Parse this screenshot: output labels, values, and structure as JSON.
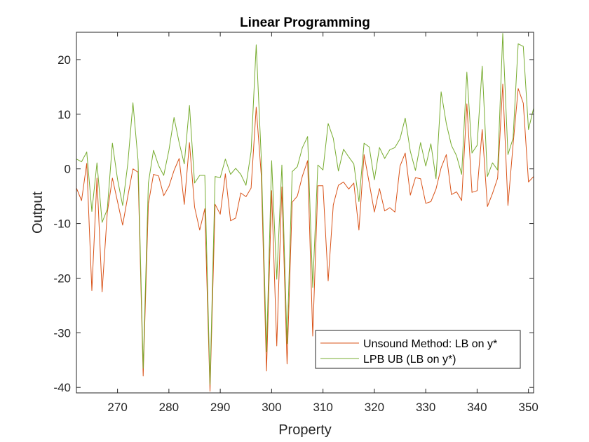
{
  "chart_data": {
    "type": "line",
    "title": "Linear Programming",
    "xlabel": "Property",
    "ylabel": "Output",
    "xlim": [
      262,
      351
    ],
    "ylim": [
      -41,
      25
    ],
    "xticks": [
      270,
      280,
      290,
      300,
      310,
      320,
      330,
      340,
      350
    ],
    "yticks": [
      -40,
      -30,
      -20,
      -10,
      0,
      10,
      20
    ],
    "grid": false,
    "legend_position": "bottom-right",
    "x": [
      262,
      263,
      264,
      265,
      266,
      267,
      268,
      269,
      270,
      271,
      272,
      273,
      274,
      275,
      276,
      277,
      278,
      279,
      280,
      281,
      282,
      283,
      284,
      285,
      286,
      287,
      288,
      289,
      290,
      291,
      292,
      293,
      294,
      295,
      296,
      297,
      298,
      299,
      300,
      301,
      302,
      303,
      304,
      305,
      306,
      307,
      308,
      309,
      310,
      311,
      312,
      313,
      314,
      315,
      316,
      317,
      318,
      319,
      320,
      321,
      322,
      323,
      324,
      325,
      326,
      327,
      328,
      329,
      330,
      331,
      332,
      333,
      334,
      335,
      336,
      337,
      338,
      339,
      340,
      341,
      342,
      343,
      344,
      345,
      346,
      347,
      348,
      349,
      350,
      351
    ],
    "series": [
      {
        "name": "Unsound Method: LB on y*",
        "color": "#d95319",
        "values": [
          -3.5,
          -5.8,
          1.0,
          -22.3,
          -1.7,
          -22.5,
          -8.0,
          -1.7,
          -6.0,
          -10.3,
          -5.0,
          0.0,
          -0.6,
          -37.9,
          -6.4,
          -1.0,
          -1.3,
          -4.9,
          -3.2,
          -0.3,
          1.9,
          -6.5,
          4.8,
          -7.0,
          -11.2,
          -7.3,
          -40.7,
          -6.5,
          -8.3,
          -0.9,
          -9.5,
          -9.0,
          -4.4,
          -5.1,
          -3.5,
          11.3,
          -1.3,
          -37.0,
          -4.0,
          -32.4,
          -3.3,
          -35.7,
          -6.1,
          -5.0,
          -1.3,
          1.5,
          -30.6,
          -3.1,
          -3.1,
          -20.5,
          -6.6,
          -3.0,
          -2.4,
          -3.7,
          -2.6,
          -11.2,
          2.6,
          -2.6,
          -7.9,
          -3.6,
          -7.7,
          -7.1,
          -7.9,
          0.5,
          2.9,
          -4.8,
          -1.6,
          -1.8,
          -6.3,
          -6.0,
          -3.7,
          0.2,
          2.6,
          -4.7,
          -4.2,
          -5.8,
          11.9,
          -4.3,
          -4.0,
          7.2,
          -6.9,
          -4.5,
          -1.7,
          15.5,
          -6.7,
          4.4,
          14.7,
          12.0,
          -2.4,
          -1.4
        ]
      },
      {
        "name": "LPB UB (LB on y*)",
        "color": "#77ac30",
        "values": [
          1.8,
          1.3,
          3.1,
          -7.8,
          1.1,
          -9.8,
          -7.4,
          4.7,
          -1.9,
          -6.7,
          1.0,
          12.1,
          1.5,
          -36.5,
          -2.6,
          3.4,
          0.6,
          -1.2,
          3.4,
          9.4,
          4.8,
          0.9,
          11.6,
          -2.6,
          -1.2,
          -1.2,
          -39.5,
          -1.4,
          -1.6,
          1.8,
          -1.0,
          0.1,
          -1.0,
          -3.0,
          3.2,
          22.7,
          1.7,
          -33.5,
          1.5,
          -20.2,
          0.7,
          -32.0,
          -0.5,
          0.4,
          3.9,
          5.9,
          -21.7,
          0.7,
          -0.2,
          8.3,
          5.6,
          -0.4,
          3.6,
          2.2,
          0.9,
          -6.0,
          4.7,
          4.0,
          -2.0,
          3.9,
          1.9,
          3.5,
          3.9,
          5.5,
          9.3,
          3.2,
          -0.3,
          4.8,
          0.5,
          4.6,
          -1.8,
          14.1,
          8.3,
          4.3,
          2.4,
          -1.0,
          17.7,
          2.9,
          4.3,
          18.8,
          -1.4,
          1.1,
          -0.2,
          24.8,
          2.6,
          5.6,
          22.9,
          22.4,
          7.2,
          11.1
        ]
      }
    ]
  }
}
